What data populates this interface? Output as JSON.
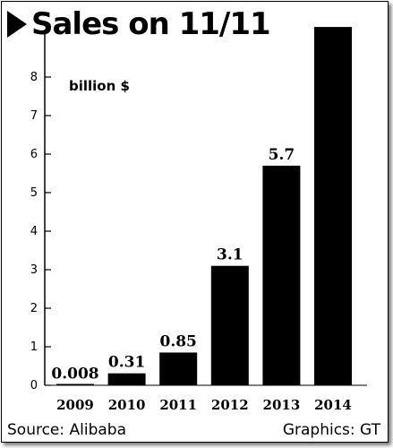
{
  "title": "Sales on 11/11",
  "source": "Source: Alibaba",
  "credit": "Graphics: GT",
  "chart_data": {
    "type": "bar",
    "title": "Sales on 11/11",
    "ylabel": "billion $",
    "categories": [
      "2009",
      "2010",
      "2011",
      "2012",
      "2013",
      "2014"
    ],
    "values": [
      0.008,
      0.31,
      0.85,
      3.1,
      5.7,
      9.3
    ],
    "value_labels": [
      "0.008",
      "0.31",
      "0.85",
      "3.1",
      "5.7",
      "9.3"
    ],
    "yticks": [
      "0",
      "1",
      "2",
      "3",
      "4",
      "5",
      "6",
      "7",
      "8"
    ],
    "ylim": [
      0,
      9.3
    ],
    "grid": false,
    "bar_color": "#000000"
  }
}
